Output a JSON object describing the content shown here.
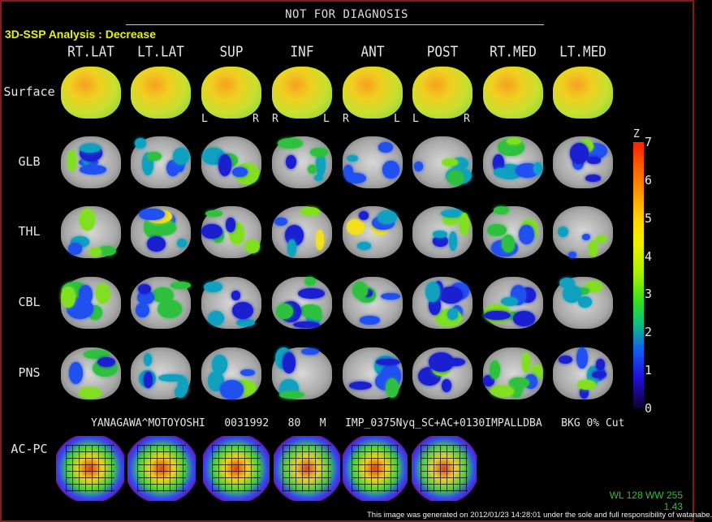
{
  "header": {
    "notice": "NOT FOR DIAGNOSIS",
    "title": "3D-SSP Analysis : Decrease"
  },
  "columns": [
    "RT.LAT",
    "LT.LAT",
    "SUP",
    "INF",
    "ANT",
    "POST",
    "RT.MED",
    "LT.MED"
  ],
  "rows": [
    "Surface",
    "GLB",
    "THL",
    "CBL",
    "PNS"
  ],
  "orientation_labels": [
    {
      "column": "SUP",
      "left": "L",
      "right": "R"
    },
    {
      "column": "INF",
      "left": "R",
      "right": "L"
    },
    {
      "column": "ANT",
      "left": "R",
      "right": "L"
    },
    {
      "column": "POST",
      "left": "L",
      "right": "R"
    }
  ],
  "colorbar": {
    "label": "Z",
    "ticks": [
      "7",
      "6",
      "5",
      "4",
      "3",
      "2",
      "1",
      "0"
    ],
    "min": 0,
    "max": 7
  },
  "patient_line": "YANAGAWA^MOTOYOSHI   0031992   80   M   IMP_0375Nyq_SC+AC+0130IMPALLDBA   BKG 0% Cut",
  "acpc": {
    "label": "AC-PC",
    "count": 6
  },
  "display": {
    "window": "WL 128 WW 255",
    "zoom": "1.43"
  },
  "footer": "This image was generated on 2012/01/23 14:28:01 under the sole and full responsibility of watanabe."
}
